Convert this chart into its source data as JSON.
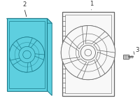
{
  "bg_color": "#ffffff",
  "blue_fill": "#5ecfdf",
  "blue_stroke": "#1a7a8a",
  "outline_stroke": "#666666",
  "outline_fill": "#f8f8f8",
  "bolt_color": "#888888",
  "label_color": "#333333",
  "label1": "1",
  "label2": "2",
  "label3": "3",
  "figsize": [
    2.0,
    1.47
  ],
  "dpi": 100
}
